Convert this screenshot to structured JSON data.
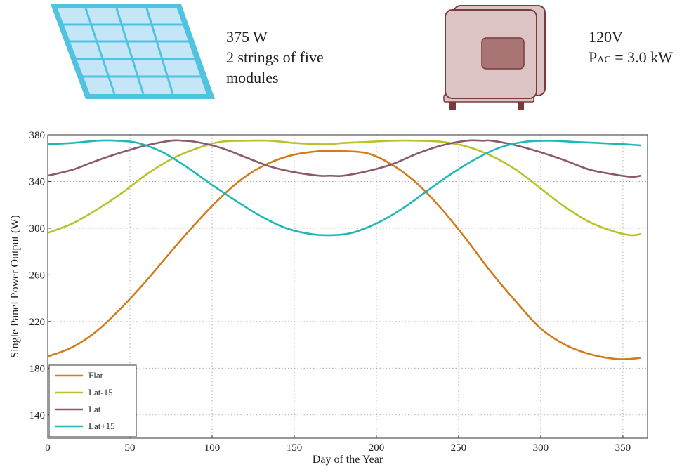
{
  "panel": {
    "power": "375 W",
    "strings_line1": "2 strings of five",
    "strings_line2": "modules",
    "colors": {
      "frame": "#4fc3e0",
      "cell": "#c5e6f7",
      "grid": "#4fc3e0"
    }
  },
  "inverter": {
    "voltage": "120V",
    "pac_symbol": "P",
    "pac_sub": "AC",
    "pac_value": " = 3.0 kW",
    "colors": {
      "body": "#dcc4c4",
      "outline": "#7a3a3a",
      "window": "#a87474"
    }
  },
  "chart_data": {
    "type": "line",
    "xlabel": "Day of the Year",
    "ylabel": "Single Panel Power Output (W)",
    "xlim": [
      0,
      365
    ],
    "ylim": [
      120,
      380
    ],
    "xticks": [
      0,
      50,
      100,
      150,
      200,
      250,
      300,
      350
    ],
    "yticks": [
      140,
      180,
      220,
      260,
      300,
      340,
      380
    ],
    "grid": true,
    "legend_position": "bottom-left",
    "series": [
      {
        "name": "Flat",
        "color": "#d17c1a",
        "x": [
          0,
          15,
          30,
          45,
          60,
          75,
          90,
          105,
          120,
          135,
          150,
          165,
          172,
          180,
          195,
          210,
          225,
          240,
          255,
          270,
          285,
          300,
          315,
          330,
          345,
          355,
          361
        ],
        "y": [
          190,
          198,
          212,
          232,
          255,
          280,
          304,
          326,
          344,
          356,
          363,
          366,
          366,
          366,
          364,
          354,
          338,
          316,
          290,
          262,
          237,
          214,
          200,
          192,
          188,
          188,
          189
        ]
      },
      {
        "name": "Lat-15",
        "color": "#b8c22c",
        "x": [
          0,
          15,
          30,
          45,
          60,
          75,
          90,
          105,
          120,
          135,
          150,
          165,
          172,
          180,
          195,
          210,
          225,
          240,
          255,
          270,
          285,
          300,
          315,
          330,
          345,
          355,
          361
        ],
        "y": [
          296,
          304,
          316,
          330,
          346,
          359,
          368,
          374,
          375,
          375,
          373,
          372,
          372,
          373,
          374,
          375,
          375,
          374,
          370,
          362,
          350,
          334,
          318,
          305,
          297,
          294,
          295
        ]
      },
      {
        "name": "Lat",
        "color": "#8c5a66",
        "x": [
          0,
          15,
          30,
          45,
          60,
          75,
          82,
          90,
          105,
          120,
          135,
          150,
          165,
          172,
          180,
          195,
          210,
          225,
          240,
          255,
          265,
          270,
          285,
          300,
          315,
          330,
          345,
          355,
          361
        ],
        "y": [
          345,
          350,
          358,
          365,
          371,
          375,
          375,
          374,
          369,
          361,
          353,
          348,
          345,
          345,
          345,
          349,
          355,
          364,
          371,
          375,
          375,
          375,
          371,
          365,
          358,
          350,
          346,
          344,
          345
        ]
      },
      {
        "name": "Lat+15",
        "color": "#1fb7b7",
        "x": [
          0,
          15,
          30,
          42,
          55,
          70,
          85,
          100,
          115,
          130,
          145,
          160,
          172,
          185,
          200,
          215,
          230,
          245,
          260,
          275,
          290,
          305,
          320,
          335,
          350,
          361
        ],
        "y": [
          372,
          373,
          375,
          375,
          373,
          365,
          352,
          337,
          323,
          310,
          300,
          295,
          294,
          296,
          304,
          316,
          331,
          346,
          359,
          369,
          374,
          375,
          374,
          373,
          372,
          371
        ]
      }
    ]
  }
}
